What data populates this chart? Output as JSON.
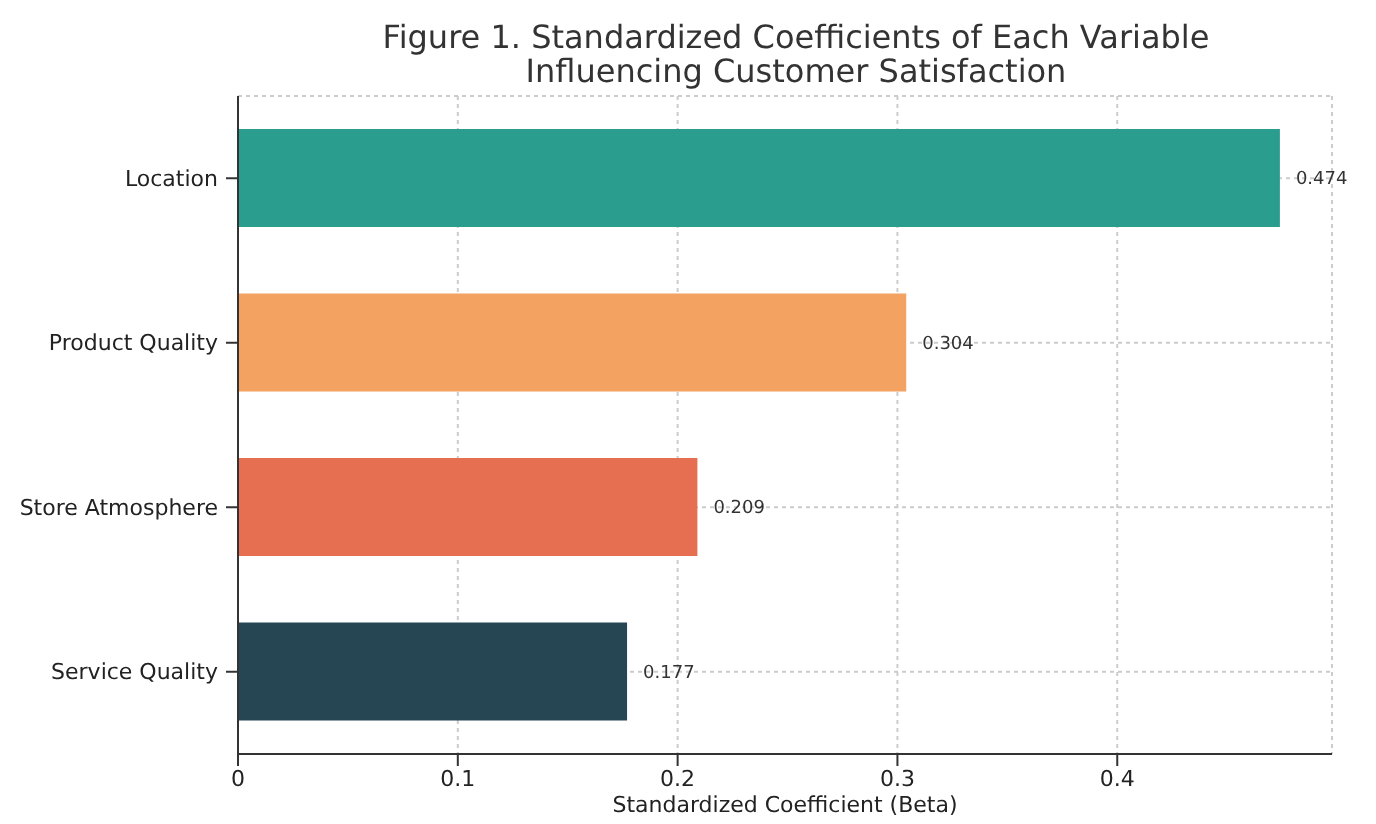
{
  "chart_data": {
    "type": "bar",
    "orientation": "horizontal",
    "title": "Figure 1. Standardized Coefficients of Each Variable\nInfluencing Customer Satisfaction",
    "xlabel": "Standardized Coefficient (Beta)",
    "categories": [
      "Location",
      "Product Quality",
      "Store Atmosphere",
      "Service Quality"
    ],
    "values": [
      0.474,
      0.304,
      0.209,
      0.177
    ],
    "colors": [
      "#2a9d8f",
      "#f4a261",
      "#e76f51",
      "#264653"
    ],
    "xlim": [
      0,
      0.4977
    ],
    "xticks": [
      0,
      0.1,
      0.2,
      0.3,
      0.4
    ],
    "grid": true,
    "data_labels": true
  }
}
